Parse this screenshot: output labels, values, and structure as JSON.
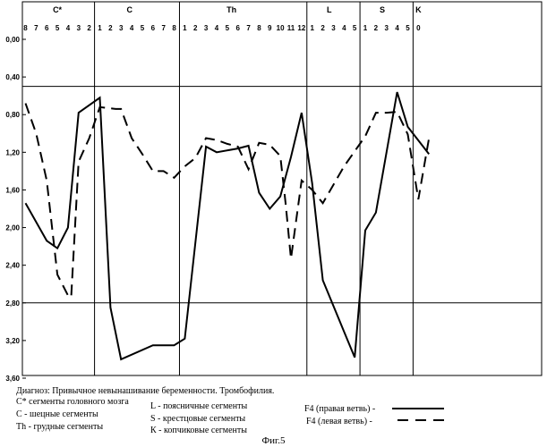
{
  "chart_data": {
    "type": "line",
    "groups": [
      {
        "label": "C*",
        "segments": [
          "8",
          "7",
          "6",
          "5",
          "4",
          "3",
          "2"
        ]
      },
      {
        "label": "C",
        "segments": [
          "1",
          "2",
          "3",
          "4",
          "5",
          "6",
          "7",
          "8"
        ]
      },
      {
        "label": "Th",
        "segments": [
          "1",
          "2",
          "3",
          "4",
          "5",
          "6",
          "7",
          "8",
          "9",
          "10",
          "11",
          "12"
        ]
      },
      {
        "label": "L",
        "segments": [
          "1",
          "2",
          "3",
          "4",
          "5"
        ]
      },
      {
        "label": "S",
        "segments": [
          "1",
          "2",
          "3",
          "4",
          "5"
        ]
      },
      {
        "label": "K",
        "segments": [
          "0"
        ]
      }
    ],
    "y_ticks": [
      "0,00",
      "0,40",
      "0,80",
      "1,20",
      "1,60",
      "2,00",
      "2,40",
      "2,80",
      "3,20",
      "3,60"
    ],
    "ylim": [
      0,
      3.6
    ],
    "y_inverted": true,
    "reference_lines": [
      0.5,
      2.8
    ],
    "series": [
      {
        "legend_label": "F4 (правая ветвь)",
        "style": "solid",
        "points": [
          [
            0,
            1.74
          ],
          [
            2,
            2.14
          ],
          [
            3,
            2.22
          ],
          [
            4,
            2.0
          ],
          [
            5,
            0.78
          ],
          [
            7,
            0.62
          ],
          [
            8,
            2.85
          ],
          [
            9,
            3.4
          ],
          [
            12,
            3.25
          ],
          [
            14,
            3.25
          ],
          [
            15,
            3.18
          ],
          [
            17,
            1.14
          ],
          [
            18,
            1.2
          ],
          [
            20,
            1.16
          ],
          [
            21,
            1.13
          ],
          [
            22,
            1.63
          ],
          [
            23,
            1.8
          ],
          [
            24,
            1.67
          ],
          [
            25,
            1.25
          ],
          [
            26,
            0.78
          ],
          [
            27,
            1.53
          ],
          [
            28,
            2.56
          ],
          [
            31,
            3.38
          ],
          [
            32,
            2.03
          ],
          [
            33,
            1.84
          ],
          [
            35,
            0.56
          ],
          [
            36,
            0.93
          ],
          [
            38,
            1.22
          ]
        ]
      },
      {
        "legend_label": "F4 (левая ветвь)",
        "style": "dashed",
        "points": [
          [
            0,
            0.68
          ],
          [
            1,
            1.0
          ],
          [
            2,
            1.5
          ],
          [
            3,
            2.5
          ],
          [
            4,
            2.72
          ],
          [
            4.3,
            2.74
          ],
          [
            5,
            1.3
          ],
          [
            6,
            1.05
          ],
          [
            7,
            0.72
          ],
          [
            8.5,
            0.74
          ],
          [
            9,
            0.74
          ],
          [
            10,
            1.05
          ],
          [
            11,
            1.22
          ],
          [
            12,
            1.4
          ],
          [
            13,
            1.4
          ],
          [
            14,
            1.47
          ],
          [
            15,
            1.35
          ],
          [
            16,
            1.26
          ],
          [
            17,
            1.05
          ],
          [
            18,
            1.07
          ],
          [
            19,
            1.11
          ],
          [
            20,
            1.14
          ],
          [
            21,
            1.38
          ],
          [
            22,
            1.1
          ],
          [
            23,
            1.12
          ],
          [
            24,
            1.24
          ],
          [
            24.5,
            1.75
          ],
          [
            25,
            2.33
          ],
          [
            26,
            1.5
          ],
          [
            27,
            1.6
          ],
          [
            28,
            1.74
          ],
          [
            30,
            1.35
          ],
          [
            32,
            1.03
          ],
          [
            33,
            0.78
          ],
          [
            34,
            0.78
          ],
          [
            35,
            0.77
          ],
          [
            36,
            1.01
          ],
          [
            37,
            1.7
          ],
          [
            38,
            1.05
          ]
        ]
      }
    ]
  },
  "legend": {
    "diagnosis": "Диагноз: Привычное невынашивание беременности. Тромбофилия.",
    "cstar_symbol": "C*",
    "cstar_text": " сегменты головного мозга",
    "c_text": "С - шецные сегменты",
    "th_text": "Th - грудные сегменты",
    "l_text": "L - поясничные сегменты",
    "s_text": "S - крестцовые сегменты",
    "k_text": "К - копчиковые сегменты",
    "f4_right": "F4 (правая ветвь) -",
    "f4_left": "F4 (левая ветвь) -"
  },
  "caption": "Фиг.5"
}
